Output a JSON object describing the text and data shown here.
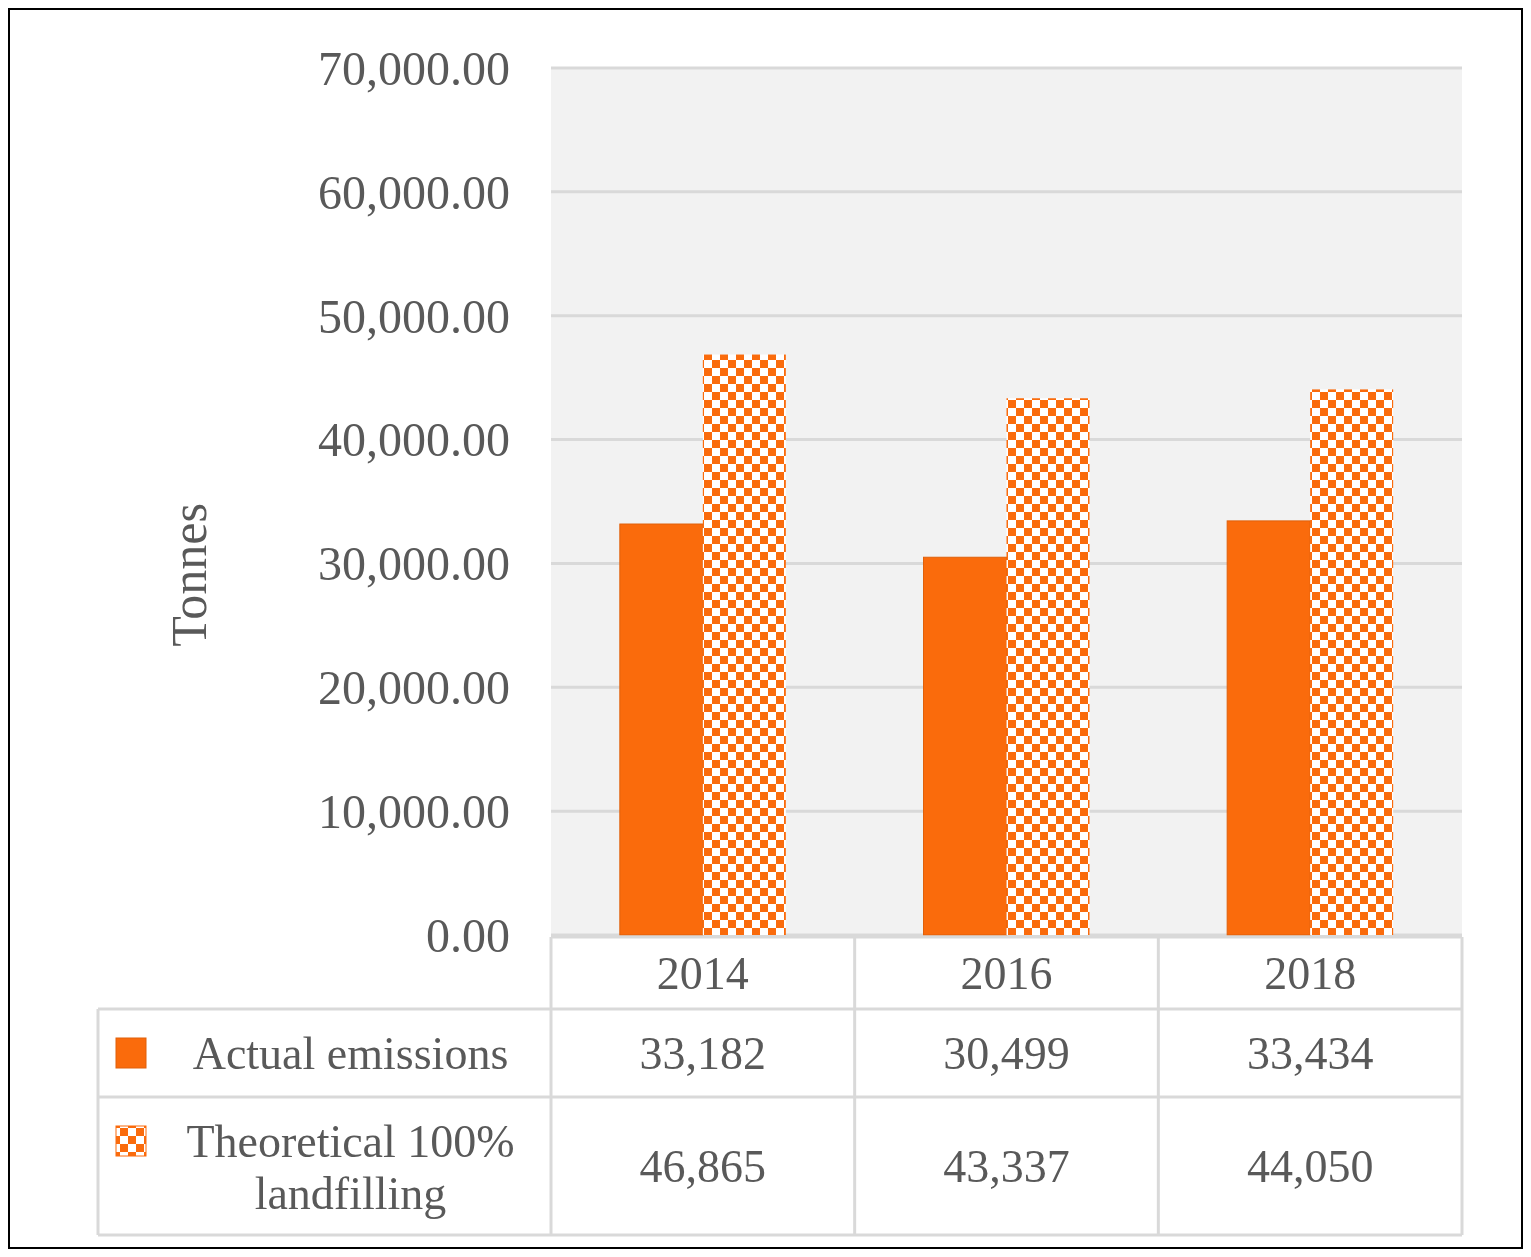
{
  "chart_data": {
    "type": "bar",
    "ylabel": "Tonnes",
    "categories": [
      "2014",
      "2016",
      "2018"
    ],
    "series": [
      {
        "name": "Actual emissions",
        "color": "#fa6b0c",
        "values": [
          33182,
          30499,
          33434
        ],
        "value_labels": [
          "33,182",
          "30,499",
          "33,434"
        ]
      },
      {
        "name": "Theoretical 100% landfilling",
        "color": "#fa6b0c",
        "values": [
          46865,
          43337,
          44050
        ],
        "value_labels": [
          "46,865",
          "43,337",
          "44,050"
        ]
      }
    ],
    "ylim": [
      0,
      70000
    ],
    "yticks": [
      {
        "value": 0,
        "label": "0.00"
      },
      {
        "value": 10000,
        "label": "10,000.00"
      },
      {
        "value": 20000,
        "label": "20,000.00"
      },
      {
        "value": 30000,
        "label": "30,000.00"
      },
      {
        "value": 40000,
        "label": "40,000.00"
      },
      {
        "value": 50000,
        "label": "50,000.00"
      },
      {
        "value": 60000,
        "label": "60,000.00"
      },
      {
        "value": 70000,
        "label": "70,000.00"
      }
    ],
    "grid": "y",
    "legend": "bottom"
  }
}
